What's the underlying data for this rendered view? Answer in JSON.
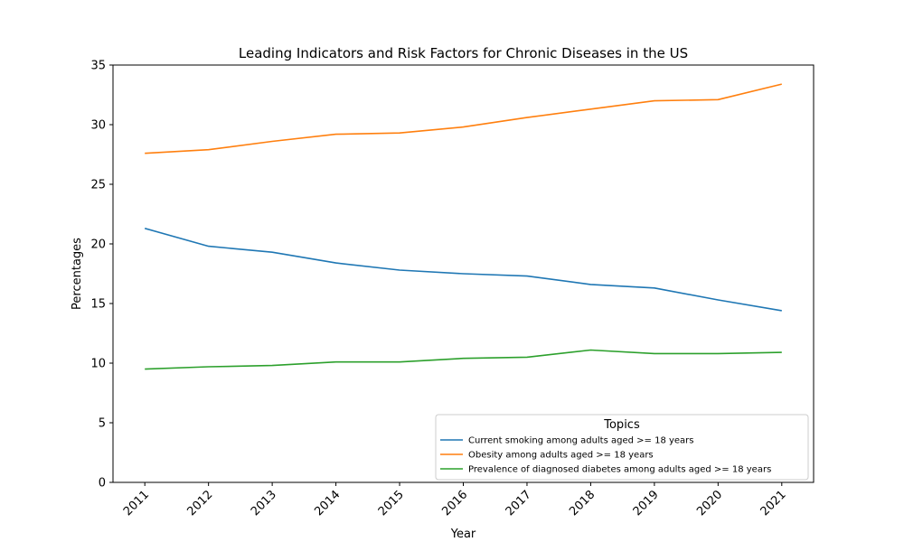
{
  "chart_data": {
    "type": "line",
    "title": "Leading Indicators and Risk Factors for Chronic Diseases in the US",
    "xlabel": "Year",
    "ylabel": "Percentages",
    "x": [
      "2011",
      "2012",
      "2013",
      "2014",
      "2015",
      "2016",
      "2017",
      "2018",
      "2019",
      "2020",
      "2021"
    ],
    "yticks": [
      "0",
      "5",
      "10",
      "15",
      "20",
      "25",
      "30",
      "35"
    ],
    "ylim": [
      0,
      35
    ],
    "grid": false,
    "legend": {
      "title": "Topics",
      "placement": "lower-right"
    },
    "series": [
      {
        "name": "Current smoking among adults aged >= 18 years",
        "color": "#1f77b4",
        "values": [
          21.3,
          19.8,
          19.3,
          18.4,
          17.8,
          17.5,
          17.3,
          16.6,
          16.3,
          15.3,
          14.4
        ]
      },
      {
        "name": "Obesity among adults aged >= 18 years",
        "color": "#ff7f0e",
        "values": [
          27.6,
          27.9,
          28.6,
          29.2,
          29.3,
          29.8,
          30.6,
          31.3,
          32.0,
          32.1,
          33.4
        ]
      },
      {
        "name": "Prevalence of diagnosed diabetes among adults aged >= 18 years",
        "color": "#2ca02c",
        "values": [
          9.5,
          9.7,
          9.8,
          10.1,
          10.1,
          10.4,
          10.5,
          11.1,
          10.8,
          10.8,
          10.9
        ]
      }
    ]
  }
}
